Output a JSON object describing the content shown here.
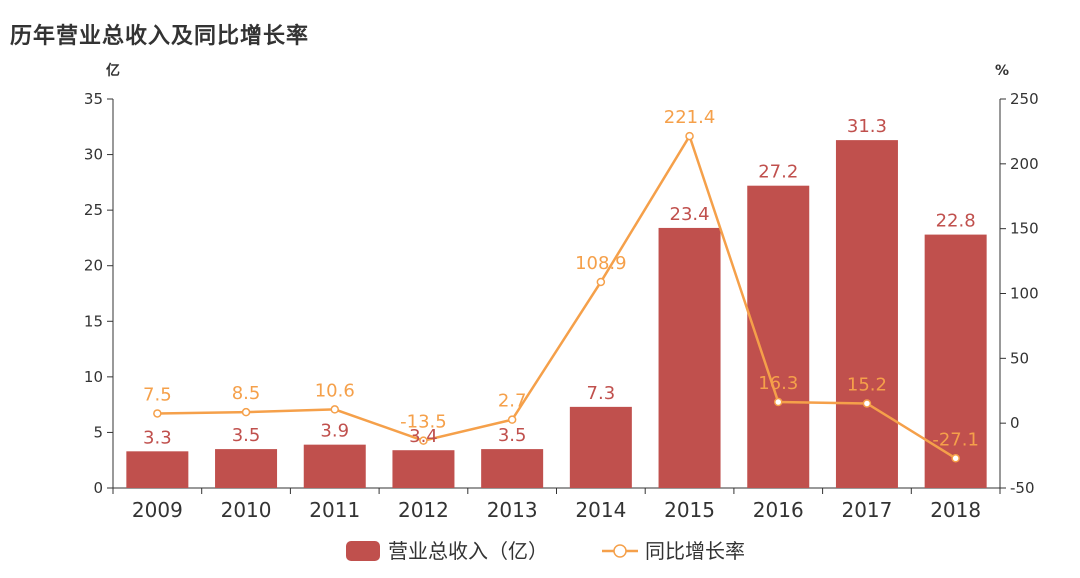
{
  "chart_data": {
    "type": "bar",
    "title": "历年营业总收入及同比增长率",
    "categories": [
      "2009",
      "2010",
      "2011",
      "2012",
      "2013",
      "2014",
      "2015",
      "2016",
      "2017",
      "2018"
    ],
    "y_left_unit": "亿",
    "y_right_unit": "%",
    "ylim_left": [
      0,
      35
    ],
    "yticks_left": [
      "0",
      "5",
      "10",
      "15",
      "20",
      "25",
      "30",
      "35"
    ],
    "ylim_right": [
      -50,
      250
    ],
    "yticks_right": [
      "-50",
      "0",
      "50",
      "100",
      "150",
      "200",
      "250"
    ],
    "series": [
      {
        "name": "营业总收入（亿）",
        "type": "bar",
        "axis": "left",
        "color": "#c0504d",
        "values": [
          3.3,
          3.5,
          3.9,
          3.4,
          3.5,
          7.3,
          23.4,
          27.2,
          31.3,
          22.8
        ],
        "labels": [
          "3.3",
          "3.5",
          "3.9",
          "3.4",
          "3.5",
          "7.3",
          "23.4",
          "27.2",
          "31.3",
          "22.8"
        ]
      },
      {
        "name": "同比增长率",
        "type": "line",
        "axis": "right",
        "color": "#f5a04a",
        "values": [
          7.5,
          8.5,
          10.6,
          -13.5,
          2.7,
          108.9,
          221.4,
          16.3,
          15.2,
          -27.1
        ],
        "labels": [
          "7.5",
          "8.5",
          "10.6",
          "-13.5",
          "2.7",
          "108.9",
          "221.4",
          "16.3",
          "15.2",
          "-27.1"
        ]
      }
    ],
    "grid": false,
    "legend": "bottom-center"
  }
}
